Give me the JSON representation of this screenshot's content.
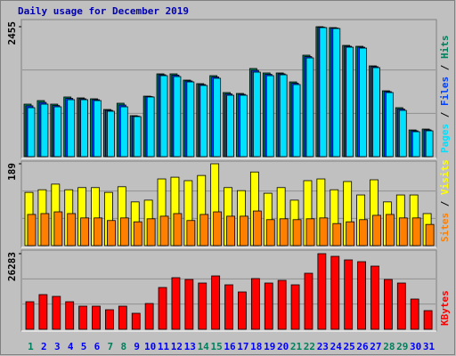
{
  "chart_data": [
    {
      "type": "bar",
      "title": "Daily usage for December 2019",
      "legend_separator": "/",
      "ylim": [
        0,
        2455
      ],
      "yticks": [
        2455
      ],
      "series": [
        {
          "name": "Hits",
          "color": "#00805c",
          "values": [
            992,
            1059,
            992,
            1127,
            1110,
            1093,
            891,
            1009,
            774,
            1143,
            1564,
            1564,
            1446,
            1379,
            1530,
            1211,
            1194,
            1665,
            1581,
            1581,
            1412,
            1917,
            2455,
            2438,
            2102,
            2085,
            1715,
            1244,
            925,
            504,
            521
          ]
        },
        {
          "name": "Files",
          "color": "#0040ff",
          "values": [
            960,
            1025,
            965,
            1100,
            1093,
            1076,
            875,
            975,
            765,
            1135,
            1547,
            1540,
            1430,
            1362,
            1505,
            1185,
            1177,
            1630,
            1555,
            1564,
            1387,
            1890,
            2445,
            2430,
            2085,
            2068,
            1700,
            1228,
            900,
            488,
            505
          ]
        },
        {
          "name": "Pages",
          "color": "#00e0ff",
          "values": [
            925,
            992,
            942,
            1076,
            1076,
            1059,
            858,
            942,
            757,
            1127,
            1530,
            1513,
            1412,
            1345,
            1480,
            1160,
            1160,
            1597,
            1530,
            1547,
            1362,
            1866,
            2438,
            2421,
            2068,
            2051,
            1682,
            1211,
            874,
            471,
            488
          ]
        }
      ]
    },
    {
      "type": "bar",
      "legend_separator": "/",
      "ylim": [
        0,
        189
      ],
      "yticks": [
        189
      ],
      "series": [
        {
          "name": "Visits",
          "color": "#ffff00",
          "values": [
            123,
            129,
            142,
            129,
            134,
            134,
            123,
            136,
            101,
            105,
            154,
            158,
            150,
            162,
            189,
            134,
            127,
            170,
            121,
            134,
            105,
            150,
            154,
            129,
            148,
            117,
            152,
            101,
            117,
            117,
            74
          ]
        },
        {
          "name": "Sites",
          "color": "#ff8000",
          "values": [
            72,
            74,
            78,
            74,
            64,
            64,
            58,
            64,
            55,
            62,
            68,
            74,
            58,
            72,
            78,
            68,
            68,
            80,
            60,
            62,
            60,
            62,
            64,
            51,
            55,
            60,
            70,
            72,
            64,
            64,
            49
          ]
        }
      ]
    },
    {
      "type": "bar",
      "ylim": [
        0,
        26283
      ],
      "yticks": [
        26283
      ],
      "categories": [
        "1",
        "2",
        "3",
        "4",
        "5",
        "6",
        "7",
        "8",
        "9",
        "10",
        "11",
        "12",
        "13",
        "14",
        "15",
        "16",
        "17",
        "18",
        "19",
        "20",
        "21",
        "22",
        "23",
        "24",
        "25",
        "26",
        "27",
        "28",
        "29",
        "30",
        "31"
      ],
      "category_colors": [
        "#00805c",
        "#0000ff",
        "#0000ff",
        "#0000ff",
        "#0000ff",
        "#0000ff",
        "#00805c",
        "#00805c",
        "#0000ff",
        "#0000ff",
        "#0000ff",
        "#0000ff",
        "#0000ff",
        "#00805c",
        "#00805c",
        "#0000ff",
        "#0000ff",
        "#0000ff",
        "#0000ff",
        "#0000ff",
        "#00805c",
        "#00805c",
        "#0000ff",
        "#0000ff",
        "#0000ff",
        "#0000ff",
        "#0000ff",
        "#00805c",
        "#00805c",
        "#0000ff",
        "#0000ff"
      ],
      "series": [
        {
          "name": "KBytes",
          "color": "#ff0000",
          "values": [
            9585,
            12059,
            11440,
            9585,
            8039,
            8039,
            6802,
            8039,
            5566,
            8967,
            14532,
            17934,
            17315,
            16078,
            18552,
            15460,
            12986,
            17624,
            16078,
            17006,
            15460,
            19479,
            26283,
            25354,
            24118,
            23499,
            21953,
            17315,
            16078,
            10513,
            6493
          ]
        }
      ]
    }
  ]
}
